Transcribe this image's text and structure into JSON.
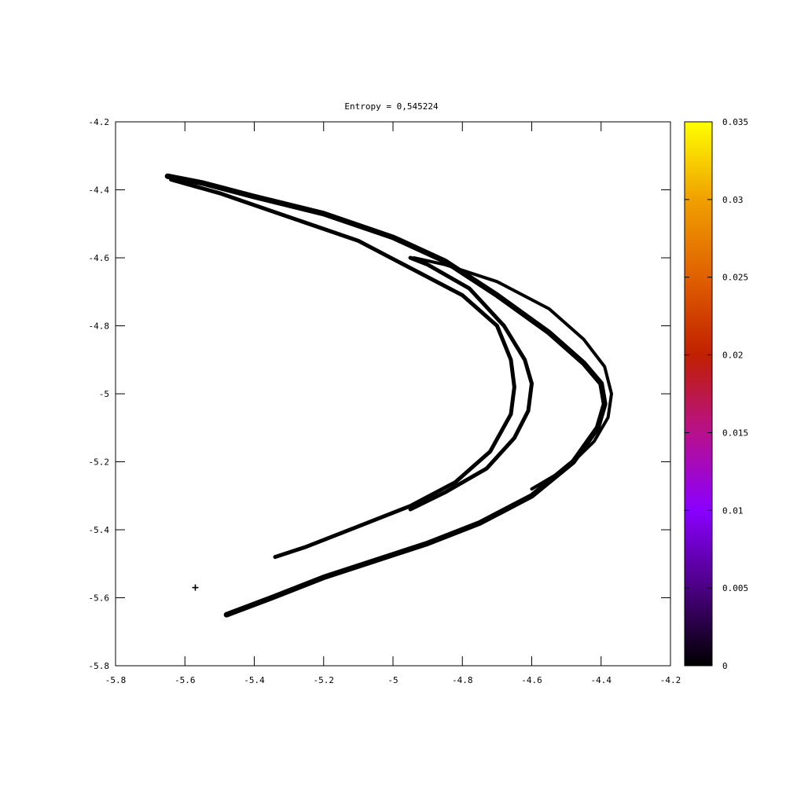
{
  "chart_data": {
    "type": "scatter",
    "title": "Entropy = 0,545224",
    "xlabel": "",
    "ylabel": "",
    "xlim": [
      -5.8,
      -4.2
    ],
    "ylim": [
      -5.8,
      -4.2
    ],
    "x_ticks": [
      "-5.8",
      "-5.6",
      "-5.4",
      "-5.2",
      "-5",
      "-4.8",
      "-4.6",
      "-4.4",
      "-4.2"
    ],
    "y_ticks": [
      "-4.2",
      "-4.4",
      "-4.6",
      "-4.8",
      "-5",
      "-5.2",
      "-5.4",
      "-5.6",
      "-5.8"
    ],
    "x_tick_values": [
      -5.8,
      -5.6,
      -5.4,
      -5.2,
      -5.0,
      -4.8,
      -4.6,
      -4.4,
      -4.2
    ],
    "y_tick_values": [
      -4.2,
      -4.4,
      -4.6,
      -4.8,
      -5.0,
      -5.2,
      -5.4,
      -5.6,
      -5.8
    ],
    "colorbar": {
      "range": [
        0,
        0.035
      ],
      "ticks": [
        "0",
        "0.005",
        "0.01",
        "0.015",
        "0.02",
        "0.025",
        "0.03",
        "0.035"
      ],
      "tick_values": [
        0,
        0.005,
        0.01,
        0.015,
        0.02,
        0.025,
        0.03,
        0.035
      ],
      "palette": [
        "#000000",
        "#4b0082",
        "#8a00ff",
        "#b8108c",
        "#c02000",
        "#e06000",
        "#f0a000",
        "#ffff00"
      ]
    },
    "point_color": "#000000",
    "series": [
      {
        "stroke_width": 7,
        "points": [
          [
            -5.65,
            -4.36
          ],
          [
            -5.55,
            -4.38
          ],
          [
            -5.4,
            -4.42
          ],
          [
            -5.2,
            -4.47
          ],
          [
            -5.0,
            -4.54
          ],
          [
            -4.85,
            -4.61
          ],
          [
            -4.7,
            -4.71
          ],
          [
            -4.55,
            -4.82
          ],
          [
            -4.45,
            -4.91
          ],
          [
            -4.4,
            -4.97
          ],
          [
            -4.39,
            -5.03
          ],
          [
            -4.41,
            -5.1
          ],
          [
            -4.48,
            -5.2
          ],
          [
            -4.6,
            -5.3
          ],
          [
            -4.75,
            -5.38
          ],
          [
            -4.9,
            -5.44
          ],
          [
            -5.05,
            -5.49
          ],
          [
            -5.2,
            -5.54
          ],
          [
            -5.35,
            -5.6
          ],
          [
            -5.48,
            -5.65
          ]
        ]
      },
      {
        "stroke_width": 5,
        "points": [
          [
            -5.64,
            -4.37
          ],
          [
            -5.5,
            -4.41
          ],
          [
            -5.3,
            -4.48
          ],
          [
            -5.1,
            -4.55
          ],
          [
            -4.95,
            -4.63
          ],
          [
            -4.8,
            -4.71
          ],
          [
            -4.7,
            -4.8
          ],
          [
            -4.66,
            -4.9
          ],
          [
            -4.65,
            -4.98
          ],
          [
            -4.66,
            -5.06
          ],
          [
            -4.72,
            -5.17
          ],
          [
            -4.82,
            -5.26
          ],
          [
            -4.95,
            -5.33
          ],
          [
            -5.1,
            -5.39
          ],
          [
            -5.25,
            -5.45
          ],
          [
            -5.34,
            -5.48
          ]
        ]
      },
      {
        "stroke_width": 5,
        "points": [
          [
            -4.95,
            -4.6
          ],
          [
            -4.9,
            -4.62
          ],
          [
            -4.78,
            -4.69
          ],
          [
            -4.68,
            -4.8
          ],
          [
            -4.62,
            -4.9
          ],
          [
            -4.6,
            -4.97
          ],
          [
            -4.61,
            -5.05
          ],
          [
            -4.65,
            -5.13
          ],
          [
            -4.73,
            -5.22
          ],
          [
            -4.85,
            -5.29
          ],
          [
            -4.95,
            -5.34
          ]
        ]
      },
      {
        "stroke_width": 4,
        "points": [
          [
            -4.94,
            -4.6
          ],
          [
            -4.85,
            -4.62
          ],
          [
            -4.7,
            -4.67
          ],
          [
            -4.55,
            -4.75
          ],
          [
            -4.45,
            -4.84
          ],
          [
            -4.39,
            -4.92
          ],
          [
            -4.37,
            -5.0
          ],
          [
            -4.38,
            -5.07
          ],
          [
            -4.42,
            -5.14
          ],
          [
            -4.5,
            -5.22
          ],
          [
            -4.6,
            -5.28
          ]
        ]
      }
    ],
    "outliers": [
      [
        -5.57,
        -5.57
      ]
    ]
  }
}
